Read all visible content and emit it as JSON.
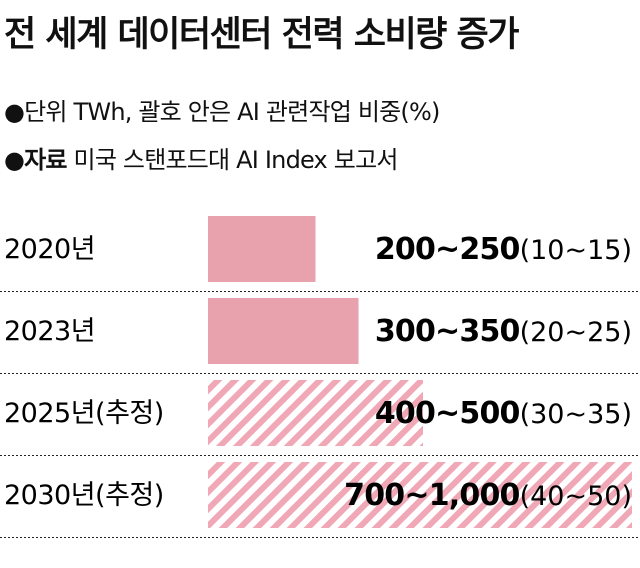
{
  "title": "전 세계 데이터센터 전력 소비량 증가",
  "meta": {
    "unit_text": "●단위  TWh, 괄호 안은 AI 관련작업 비중(%)",
    "source_label": "●자료",
    "source_text": "미국 스탠포드대 AI Index 보고서"
  },
  "colors": {
    "bar": "#E8A2AE",
    "stripe": "#F0A8B6",
    "divider": "#222222"
  },
  "chart_data": {
    "type": "bar",
    "orientation": "horizontal",
    "unit": "TWh",
    "categories": [
      "2020년",
      "2023년",
      "2025년(추정)",
      "2030년(추정)"
    ],
    "series": [
      {
        "values": [
          [
            200,
            250
          ],
          [
            300,
            350
          ],
          [
            400,
            500
          ],
          [
            700,
            1000
          ]
        ]
      }
    ],
    "data_labels": [
      "200~250",
      "300~350",
      "400~500",
      "700~1,000"
    ],
    "ai_share_labels": [
      "(10~15)",
      "(20~25)",
      "(30~35)",
      "(40~50)"
    ],
    "estimated": [
      false,
      false,
      true,
      true
    ]
  }
}
